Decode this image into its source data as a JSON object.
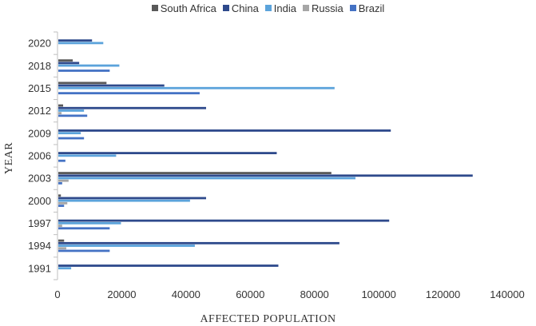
{
  "chart_data": {
    "type": "bar",
    "orientation": "horizontal",
    "title": "",
    "xlabel": "AFFECTED POPULATION",
    "ylabel": "YEAR",
    "xlim": [
      0,
      140000
    ],
    "xticks": [
      "0",
      "20000",
      "40000",
      "60000",
      "80000",
      "100000",
      "120000",
      "140000"
    ],
    "categories": [
      "1991",
      "1994",
      "1997",
      "2000",
      "2003",
      "2006",
      "2009",
      "2012",
      "2015",
      "2018",
      "2020"
    ],
    "tick_years": [
      "1991",
      "1994",
      "1997",
      "2000",
      "2003",
      "2006",
      "2009",
      "2012",
      "2015",
      "2018",
      "2020"
    ],
    "legend_position": "top",
    "grid": false,
    "series": [
      {
        "name": "South Africa",
        "color": "#595959",
        "values": [
          0,
          1800,
          0,
          800,
          85000,
          0,
          0,
          1500,
          15000,
          4500,
          0
        ]
      },
      {
        "name": "China",
        "color": "#2e4a8c",
        "values": [
          68500,
          87500,
          103000,
          46000,
          129000,
          68000,
          103500,
          46000,
          33000,
          6500,
          10500
        ]
      },
      {
        "name": "India",
        "color": "#5ba3db",
        "values": [
          4000,
          42500,
          19500,
          41000,
          92500,
          18000,
          7000,
          8000,
          86000,
          19000,
          14000
        ]
      },
      {
        "name": "Russia",
        "color": "#a6a6a6",
        "values": [
          0,
          2500,
          1200,
          2800,
          3200,
          0,
          0,
          1000,
          0,
          0,
          0
        ]
      },
      {
        "name": "Brazil",
        "color": "#4472c4",
        "values": [
          0,
          16000,
          16000,
          1800,
          1200,
          2200,
          8000,
          9000,
          44000,
          16000,
          0
        ]
      }
    ]
  }
}
